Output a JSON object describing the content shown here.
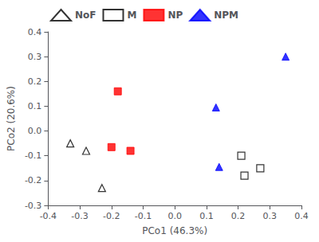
{
  "chart_data": {
    "type": "scatter",
    "xlabel": "PCo1 (46.3%)",
    "ylabel": "PCo2 (20.6%)",
    "series": [
      {
        "name": "NoF",
        "color": "#000000",
        "marker": "triangle-open",
        "values": [
          [
            -0.33,
            -0.05
          ],
          [
            -0.28,
            -0.08
          ],
          [
            -0.23,
            -0.23
          ]
        ]
      },
      {
        "name": "M",
        "color": "#000000",
        "marker": "square-open",
        "values": [
          [
            0.21,
            -0.1
          ],
          [
            0.22,
            -0.18
          ],
          [
            0.27,
            -0.15
          ]
        ]
      },
      {
        "name": "NP",
        "color": "#ff0000",
        "marker": "square",
        "values": [
          [
            -0.18,
            0.16
          ],
          [
            -0.2,
            -0.065
          ],
          [
            -0.14,
            -0.08
          ]
        ]
      },
      {
        "name": "NPM",
        "color": "#0000ff",
        "marker": "triangle",
        "values": [
          [
            0.13,
            0.095
          ],
          [
            0.14,
            -0.145
          ],
          [
            0.35,
            0.3
          ]
        ]
      }
    ],
    "xlim": [
      -0.4,
      0.4
    ],
    "ylim": [
      -0.3,
      0.4
    ],
    "xticks": [
      -0.4,
      -0.3,
      -0.2,
      -0.1,
      {
        "value": 0.0,
        "label": "0.0"
      },
      0.1,
      0.2,
      0.3,
      0.4
    ],
    "yticks": [
      -0.3,
      -0.2,
      -0.1,
      {
        "value": 0.0,
        "label": "0.0"
      },
      0.1,
      0.2,
      0.3,
      0.4
    ],
    "grid": false,
    "legend": "upper left"
  }
}
